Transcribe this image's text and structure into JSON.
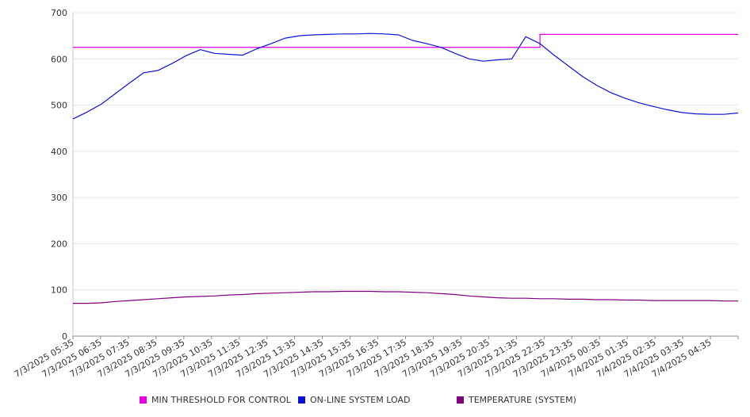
{
  "chart_data": {
    "type": "line",
    "title": "",
    "xlabel": "",
    "ylabel": "",
    "ylim": [
      0,
      700
    ],
    "yticks": [
      0,
      100,
      200,
      300,
      400,
      500,
      600,
      700
    ],
    "grid": true,
    "legend_position": "bottom",
    "x_tick_labels": [
      "7/3/2025 05:35",
      "7/3/2025 06:35",
      "7/3/2025 07:35",
      "7/3/2025 08:35",
      "7/3/2025 09:35",
      "7/3/2025 10:35",
      "7/3/2025 11:35",
      "7/3/2025 12:35",
      "7/3/2025 13:35",
      "7/3/2025 14:35",
      "7/3/2025 15:35",
      "7/3/2025 16:35",
      "7/3/2025 17:35",
      "7/3/2025 18:35",
      "7/3/2025 19:35",
      "7/3/2025 20:35",
      "7/3/2025 21:35",
      "7/3/2025 22:35",
      "7/3/2025 23:35",
      "7/4/2025 00:35",
      "7/4/2025 01:35",
      "7/4/2025 02:35",
      "7/4/2025 03:35",
      "7/4/2025 04:35"
    ],
    "x": [
      "7/3/2025 05:35",
      "7/3/2025 06:05",
      "7/3/2025 06:35",
      "7/3/2025 07:05",
      "7/3/2025 07:35",
      "7/3/2025 08:05",
      "7/3/2025 08:35",
      "7/3/2025 09:05",
      "7/3/2025 09:35",
      "7/3/2025 10:05",
      "7/3/2025 10:35",
      "7/3/2025 11:05",
      "7/3/2025 11:35",
      "7/3/2025 12:05",
      "7/3/2025 12:35",
      "7/3/2025 13:05",
      "7/3/2025 13:35",
      "7/3/2025 14:05",
      "7/3/2025 14:35",
      "7/3/2025 15:05",
      "7/3/2025 15:35",
      "7/3/2025 16:05",
      "7/3/2025 16:35",
      "7/3/2025 17:05",
      "7/3/2025 17:35",
      "7/3/2025 18:05",
      "7/3/2025 18:35",
      "7/3/2025 19:05",
      "7/3/2025 19:35",
      "7/3/2025 20:05",
      "7/3/2025 20:35",
      "7/3/2025 21:05",
      "7/3/2025 21:35",
      "7/3/2025 22:05",
      "7/3/2025 22:35",
      "7/3/2025 23:05",
      "7/3/2025 23:35",
      "7/4/2025 00:05",
      "7/4/2025 00:35",
      "7/4/2025 01:05",
      "7/4/2025 01:35",
      "7/4/2025 02:05",
      "7/4/2025 02:35",
      "7/4/2025 03:05",
      "7/4/2025 03:35",
      "7/4/2025 04:05",
      "7/4/2025 04:35",
      "7/4/2025 05:05"
    ],
    "series": [
      {
        "name": "MIN THRESHOLD FOR CONTROL",
        "color": "#e600e6",
        "values": [
          625,
          625,
          625,
          625,
          625,
          625,
          625,
          625,
          625,
          625,
          625,
          625,
          625,
          625,
          625,
          625,
          625,
          625,
          625,
          625,
          625,
          625,
          625,
          625,
          625,
          625,
          625,
          625,
          625,
          625,
          625,
          625,
          625,
          653,
          653,
          653,
          653,
          653,
          653,
          653,
          653,
          653,
          653,
          653,
          653,
          653,
          653,
          653
        ]
      },
      {
        "name": "ON-LINE SYSTEM LOAD",
        "color": "#0a14d6",
        "values": [
          470,
          485,
          502,
          525,
          548,
          570,
          575,
          590,
          607,
          620,
          612,
          610,
          608,
          622,
          633,
          645,
          650,
          652,
          653,
          654,
          654,
          655,
          654,
          652,
          640,
          633,
          625,
          612,
          600,
          595,
          598,
          600,
          648,
          633,
          608,
          585,
          562,
          543,
          527,
          515,
          505,
          497,
          490,
          484,
          481,
          480,
          480,
          483
        ]
      },
      {
        "name": "TEMPERATURE (SYSTEM)",
        "color": "#800080",
        "values": [
          71,
          71,
          72,
          75,
          77,
          79,
          81,
          83,
          85,
          86,
          87,
          89,
          90,
          92,
          93,
          94,
          95,
          96,
          96,
          97,
          97,
          97,
          96,
          96,
          95,
          94,
          92,
          90,
          87,
          85,
          83,
          82,
          82,
          81,
          81,
          80,
          80,
          79,
          79,
          78,
          78,
          77,
          77,
          77,
          77,
          77,
          76,
          76
        ]
      }
    ]
  }
}
